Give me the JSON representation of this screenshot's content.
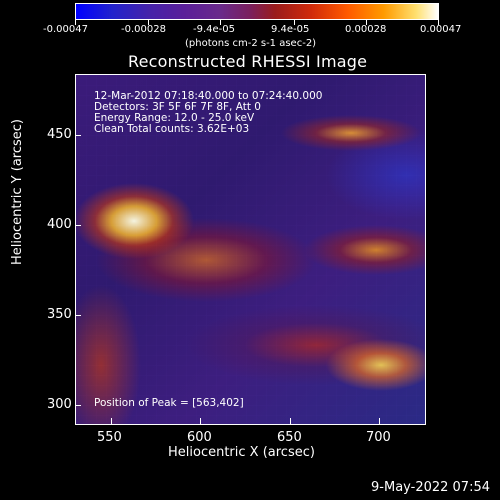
{
  "colorbar": {
    "ticks": [
      "-0.00047",
      "-0.00028",
      "-9.4e-05",
      "9.4e-05",
      "0.00028",
      "0.00047"
    ],
    "units_text": "(photons cm-2 s-1 asec-2)"
  },
  "title": "Reconstructed RHESSI Image",
  "info": {
    "line1": "12-Mar-2012 07:18:40.000 to 07:24:40.000",
    "line2": "Detectors: 3F 5F 6F 7F 8F, Att 0",
    "line3": "Energy Range: 12.0 - 25.0 keV",
    "line4": "Clean     Total counts: 3.62E+03"
  },
  "peak_text": "Position of Peak = [563,402]",
  "axes": {
    "x_ticks": [
      "550",
      "600",
      "650",
      "700"
    ],
    "y_ticks": [
      "450",
      "400",
      "350",
      "300"
    ],
    "x_label": "Heliocentric X (arcsec)",
    "y_label": "Heliocentric Y (arcsec)"
  },
  "timestamp": "9-May-2022 07:54"
}
